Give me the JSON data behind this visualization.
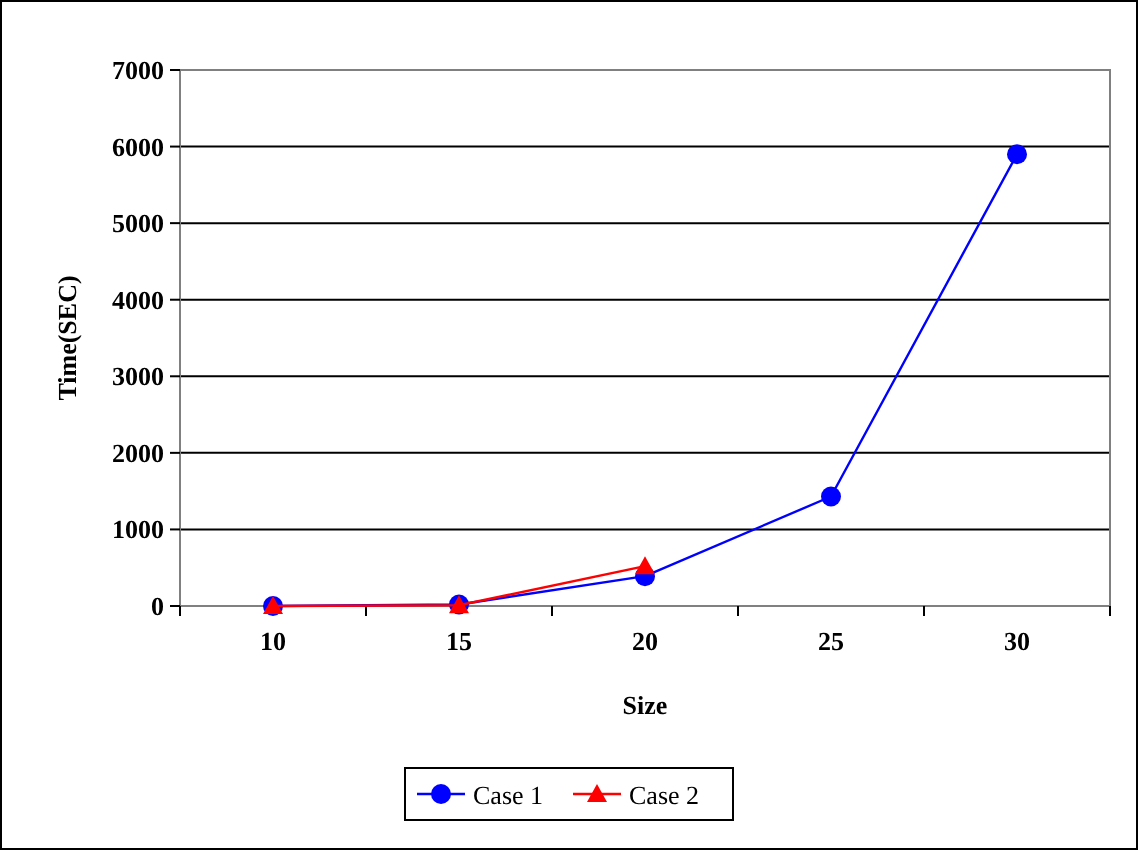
{
  "chart_data": {
    "type": "line",
    "xlabel": "Size",
    "ylabel": "Time(SEC)",
    "categories": [
      "10",
      "15",
      "20",
      "25",
      "30"
    ],
    "series": [
      {
        "name": "Case 1",
        "color": "#0000ff",
        "marker": "circle",
        "values": [
          0,
          20,
          390,
          1430,
          5900
        ]
      },
      {
        "name": "Case 2",
        "color": "#ff0000",
        "marker": "triangle",
        "values": [
          0,
          10,
          520,
          null,
          null
        ]
      }
    ],
    "ylim": [
      0,
      7000
    ],
    "yticks": [
      0,
      1000,
      2000,
      3000,
      4000,
      5000,
      6000,
      7000
    ],
    "grid": "y",
    "legend": "bottom"
  }
}
